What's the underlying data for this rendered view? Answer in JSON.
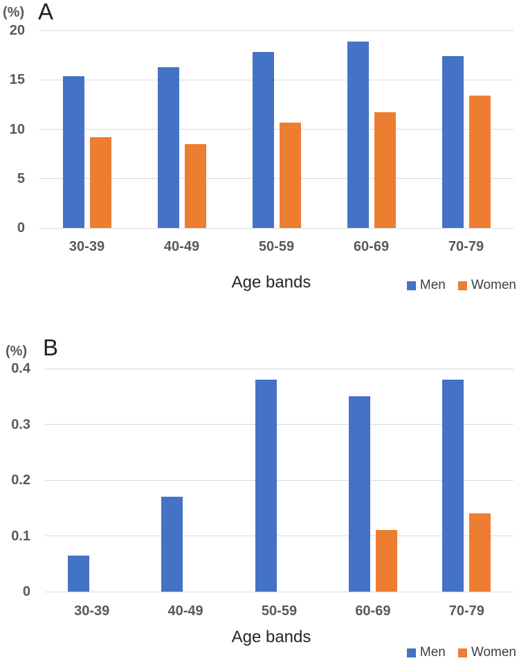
{
  "figure": {
    "background": "#ffffff",
    "colors": {
      "men": "#4472C4",
      "women": "#ED7D31",
      "gridline": "#D9D9D9",
      "axis_tick_text": "#595959",
      "title_text": "#262626"
    }
  },
  "chart_data": [
    {
      "id": "A",
      "type": "bar",
      "panel_label": "A",
      "y_axis_unit": "(%)",
      "xlabel": "Age bands",
      "ylabel": "(%)",
      "categories": [
        "30-39",
        "40-49",
        "50-59",
        "60-69",
        "70-79"
      ],
      "series": [
        {
          "name": "Men",
          "color": "#4472C4",
          "values": [
            15.4,
            16.3,
            17.8,
            18.9,
            17.4
          ]
        },
        {
          "name": "Women",
          "color": "#ED7D31",
          "values": [
            9.2,
            8.5,
            10.7,
            11.7,
            13.4
          ]
        }
      ],
      "ylim": [
        0,
        20
      ],
      "yticks": [
        0,
        5,
        10,
        15,
        20
      ],
      "ytick_labels": [
        "0",
        "5",
        "10",
        "15",
        "20"
      ],
      "grid": true,
      "legend_position": "bottom-right",
      "legend_entries": [
        "Men",
        "Women"
      ]
    },
    {
      "id": "B",
      "type": "bar",
      "panel_label": "B",
      "y_axis_unit": "(%)",
      "xlabel": "Age bands",
      "ylabel": "(%)",
      "categories": [
        "30-39",
        "40-49",
        "50-59",
        "60-69",
        "70-79"
      ],
      "series": [
        {
          "name": "Men",
          "color": "#4472C4",
          "values": [
            0.065,
            0.17,
            0.38,
            0.35,
            0.38
          ]
        },
        {
          "name": "Women",
          "color": "#ED7D31",
          "values": [
            0,
            0,
            0,
            0.11,
            0.14
          ]
        }
      ],
      "ylim": [
        0,
        0.4
      ],
      "yticks": [
        0,
        0.1,
        0.2,
        0.3,
        0.4
      ],
      "ytick_labels": [
        "0",
        "0.1",
        "0.2",
        "0.3",
        "0.4"
      ],
      "grid": true,
      "legend_position": "bottom-right",
      "legend_entries": [
        "Men",
        "Women"
      ]
    }
  ]
}
